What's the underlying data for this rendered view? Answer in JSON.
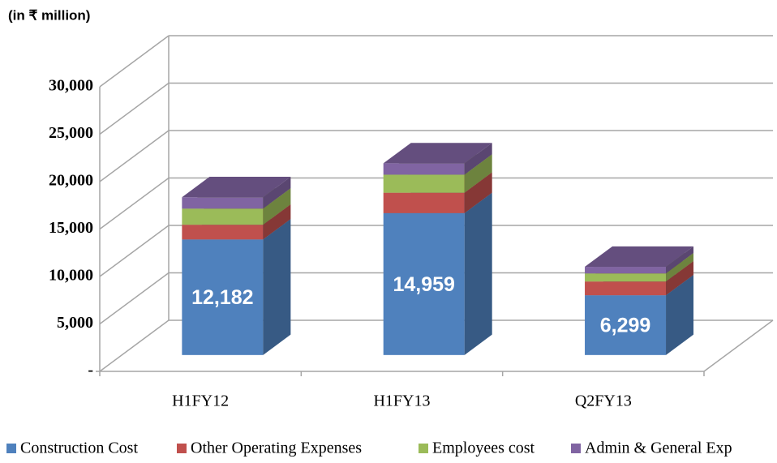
{
  "chart_data": {
    "type": "bar3d_stacked",
    "title": "(in ₹ million)",
    "categories": [
      "H1FY12",
      "H1FY13",
      "Q2FY13"
    ],
    "series": [
      {
        "name": "Construction Cost",
        "color": "#4f81bd",
        "values": [
          12182,
          14959,
          6299
        ],
        "value_labels": [
          "12,182",
          "14,959",
          "6,299"
        ]
      },
      {
        "name": "Other Operating Expenses",
        "color": "#c0504d",
        "values": [
          1550,
          2150,
          1450
        ]
      },
      {
        "name": "Employees cost",
        "color": "#9bbb59",
        "values": [
          1700,
          1900,
          850
        ]
      },
      {
        "name": "Admin & General Exp",
        "color": "#8064a2",
        "values": [
          1200,
          1200,
          700
        ]
      }
    ],
    "ylim": [
      0,
      30000
    ],
    "yticks": [
      {
        "value": 0,
        "label": "-"
      },
      {
        "value": 5000,
        "label": "5,000"
      },
      {
        "value": 10000,
        "label": "10,000"
      },
      {
        "value": 15000,
        "label": "15,000"
      },
      {
        "value": 20000,
        "label": "20,000"
      },
      {
        "value": 25000,
        "label": "25,000"
      },
      {
        "value": 30000,
        "label": "30,000"
      }
    ],
    "grid": true,
    "legend": "bottom"
  }
}
